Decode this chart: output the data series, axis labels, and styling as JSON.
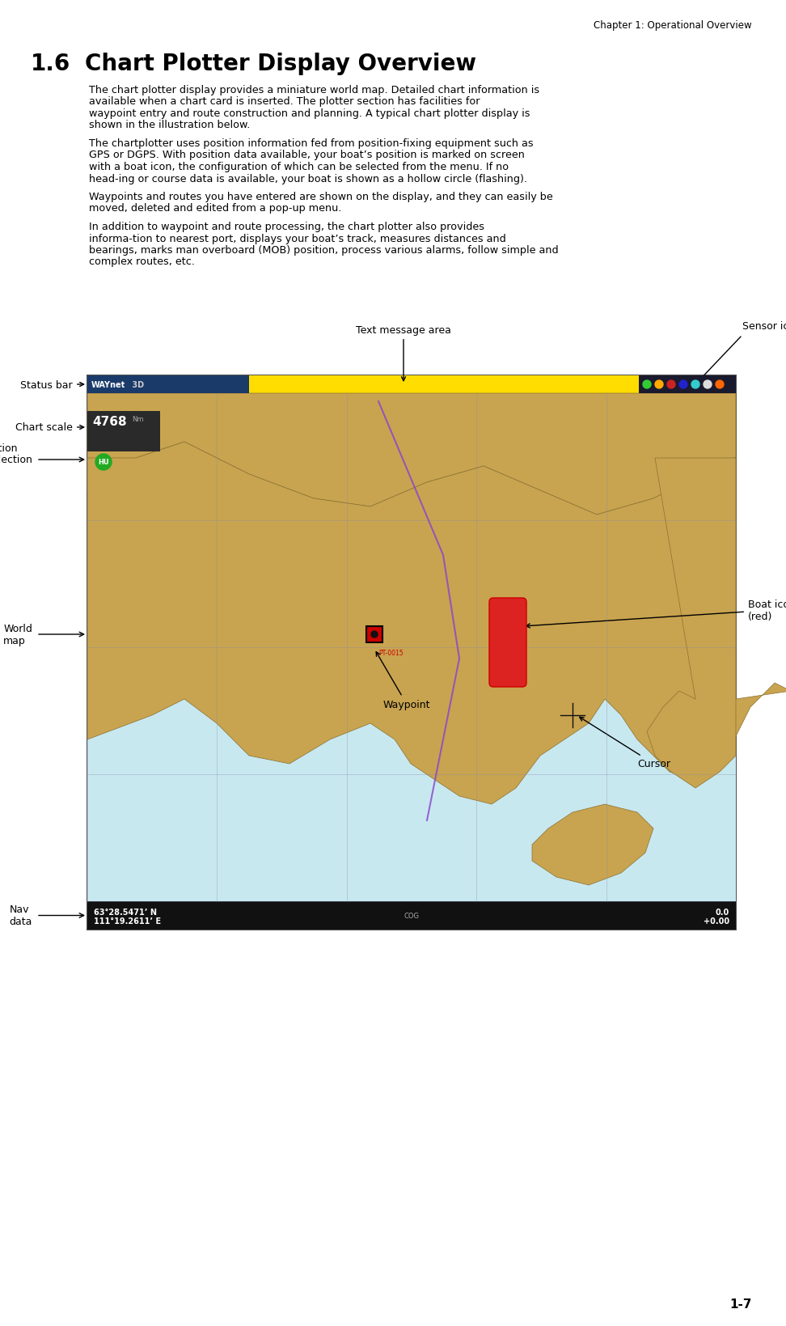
{
  "page_header": "Chapter 1: Operational Overview",
  "page_footer": "1-7",
  "section_number": "1.6",
  "section_title": "Chart Plotter Display Overview",
  "body_paragraphs": [
    "The chart plotter display provides a miniature world map. Detailed chart information is available when a chart card is inserted. The plotter section has facilities for waypoint entry and route construction and planning. A typical chart plotter display is shown in the illustration below.",
    "The chartplotter uses position information fed from position-fixing equipment such as GPS or DGPS. With position data available, your boat’s position is marked on screen with a boat icon, the configuration of which can be selected from the menu. If no head-ing or course data is available, your boat is shown as a hollow circle (flashing).",
    "Waypoints and routes you have entered are shown on the display, and they can easily be moved, deleted and edited from a pop-up menu.",
    "In addition to waypoint and route processing, the chart plotter also provides informa-tion to nearest port, displays your boat’s track, measures distances and bearings, marks man overboard (MOB) position, process various alarms, follow simple and complex routes, etc."
  ],
  "image_labels": {
    "text_message_area": "Text message area",
    "sensor_icons": "Sensor icons",
    "status_bar": "Status bar",
    "chart_scale": "Chart scale",
    "presentation_mode": "Presentation\nmode selection\nicon",
    "world_map": "World\nmap",
    "waypoint": "Waypoint",
    "boat_icon": "Boat icon\n(red)",
    "cursor": "Cursor",
    "nav_data": "Nav\ndata"
  },
  "chart_scale_value": "4768",
  "nav_data_line1": "63°28.5471’ N",
  "nav_data_line2": "111°19.2611’ E",
  "nav_data_right": "0.0ⁿᴵᵀ\n+0.00ⁿᴵᵀ",
  "waypoint_label": "PT-0015",
  "bg_color": "#ffffff",
  "text_color": "#000000",
  "header_color": "#000000",
  "map_bg_land": "#d4a455",
  "map_bg_sea": "#b8dce8",
  "status_bar_color": "#ffdd00",
  "nav_bar_color": "#1a1a1a",
  "waynet_logo_color": "#0055aa",
  "chart_frame_bg": "#1a1a2e"
}
